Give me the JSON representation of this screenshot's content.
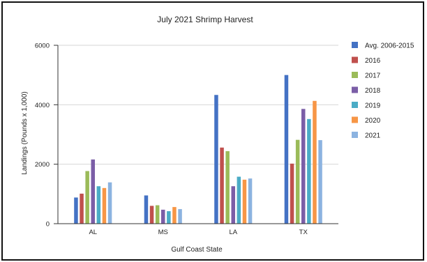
{
  "chart_data": {
    "type": "bar",
    "title": "July 2021 Shrimp Harvest",
    "xlabel": "Gulf Coast State",
    "ylabel": "Landings (Pounds x 1,000)",
    "categories": [
      "AL",
      "MS",
      "LA",
      "TX"
    ],
    "ylim": [
      0,
      6000
    ],
    "yticks": [
      0,
      2000,
      4000,
      6000
    ],
    "ytick_labels": [
      "0",
      "2000",
      "4000",
      "6000"
    ],
    "grid": true,
    "legend_position": "right",
    "series": [
      {
        "name": "Avg. 2006-2015",
        "color": "#4472c4",
        "values": [
          880,
          950,
          4330,
          5000
        ]
      },
      {
        "name": "2016",
        "color": "#c0504d",
        "values": [
          1010,
          600,
          2560,
          2020
        ]
      },
      {
        "name": "2017",
        "color": "#9bbb59",
        "values": [
          1770,
          620,
          2440,
          2820
        ]
      },
      {
        "name": "2018",
        "color": "#7b5ea7",
        "values": [
          2160,
          470,
          1260,
          3860
        ]
      },
      {
        "name": "2019",
        "color": "#4bacc6",
        "values": [
          1260,
          420,
          1580,
          3520
        ]
      },
      {
        "name": "2020",
        "color": "#f79646",
        "values": [
          1200,
          560,
          1480,
          4130
        ]
      },
      {
        "name": "2021",
        "color": "#8cb3e0",
        "values": [
          1390,
          490,
          1520,
          2810
        ]
      }
    ]
  }
}
